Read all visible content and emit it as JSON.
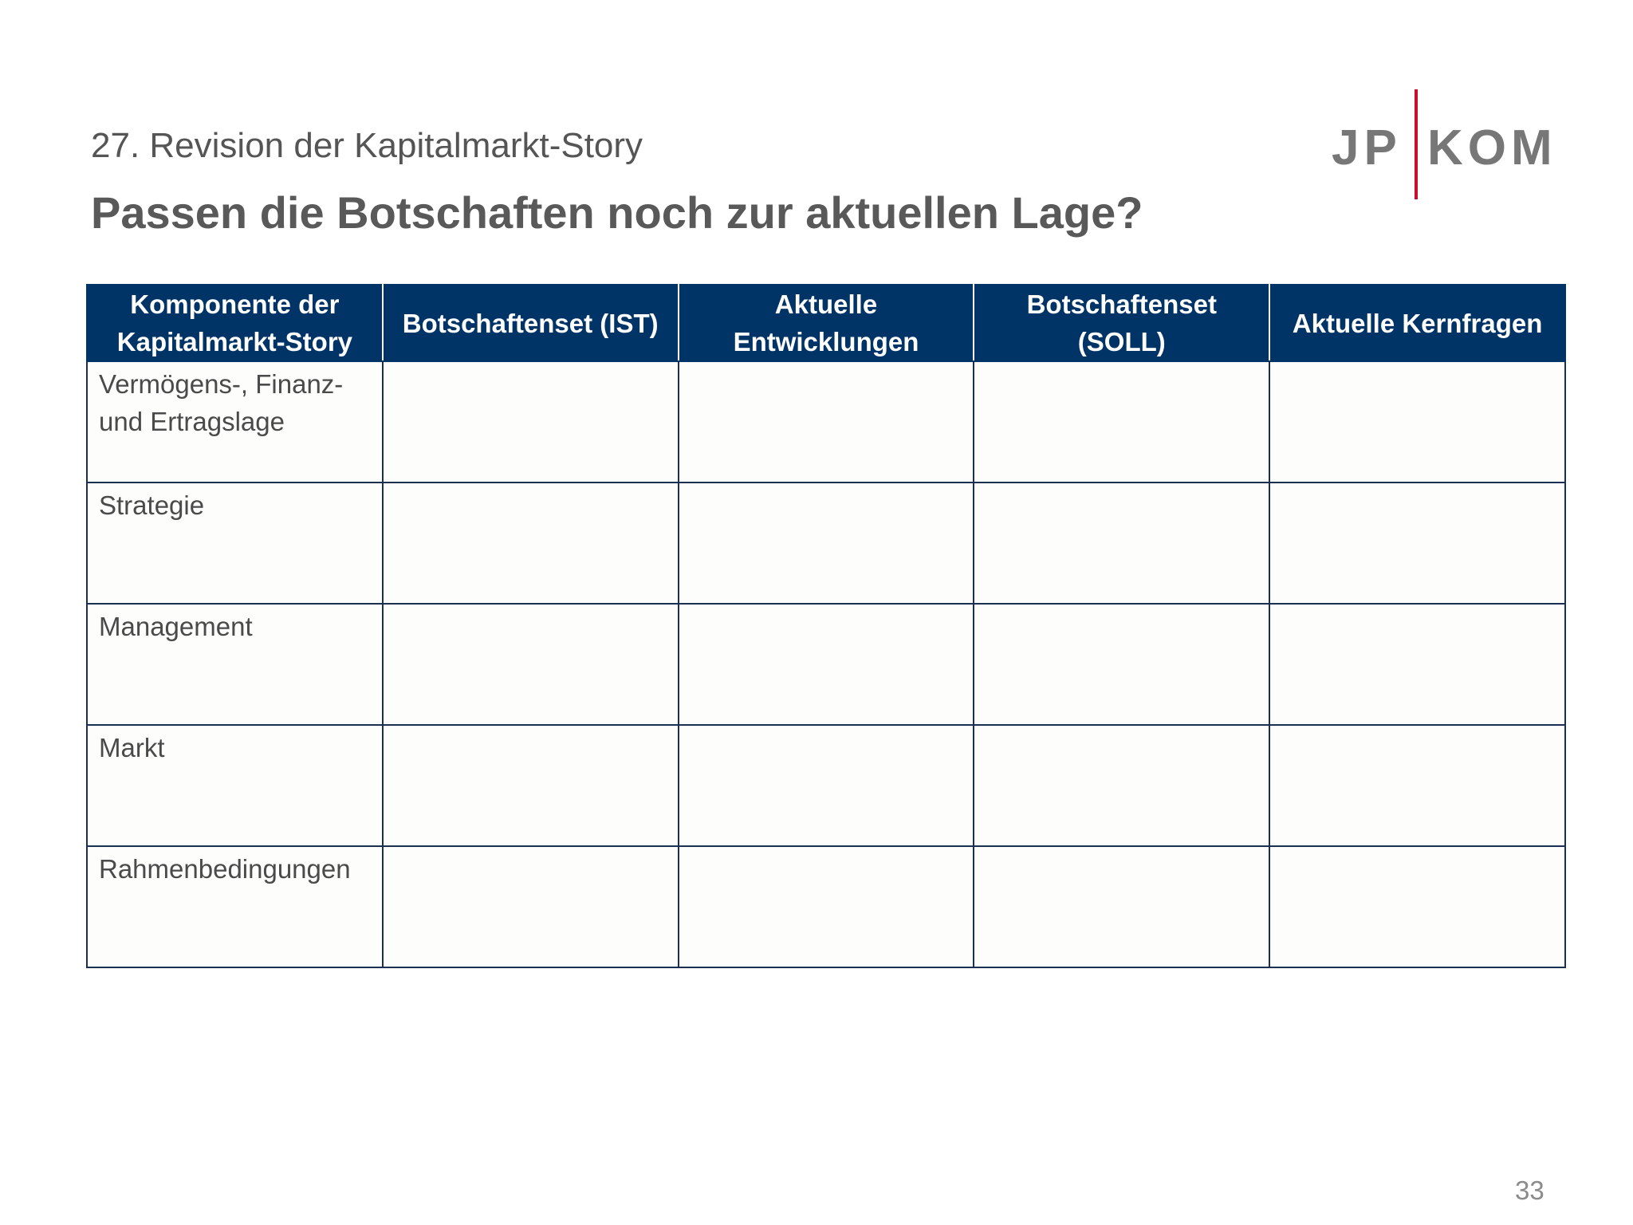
{
  "slide": {
    "subtitle": "27. Revision der Kapitalmarkt-Story",
    "title": "Passen die Botschaften noch zur aktuellen Lage?",
    "page_number": "33"
  },
  "logo": {
    "left": "JP",
    "right": "KOM",
    "bar_color": "#c8102e"
  },
  "colors": {
    "header_bg": "#003366",
    "border": "#1b2f52"
  },
  "table": {
    "headers": [
      {
        "line1": "Komponente der",
        "line2": "Kapitalmarkt-Story"
      },
      {
        "line1": "Botschaftenset (IST)",
        "line2": ""
      },
      {
        "line1": "Aktuelle",
        "line2": "Entwicklungen"
      },
      {
        "line1": "Botschaftenset",
        "line2": "(SOLL)"
      },
      {
        "line1": "Aktuelle Kernfragen",
        "line2": ""
      }
    ],
    "rows": [
      {
        "line1": "Vermögens-, Finanz-",
        "line2": "und Ertragslage"
      },
      {
        "line1": "Strategie",
        "line2": ""
      },
      {
        "line1": "Management",
        "line2": ""
      },
      {
        "line1": "Markt",
        "line2": ""
      },
      {
        "line1": "Rahmenbedingungen",
        "line2": ""
      }
    ]
  }
}
